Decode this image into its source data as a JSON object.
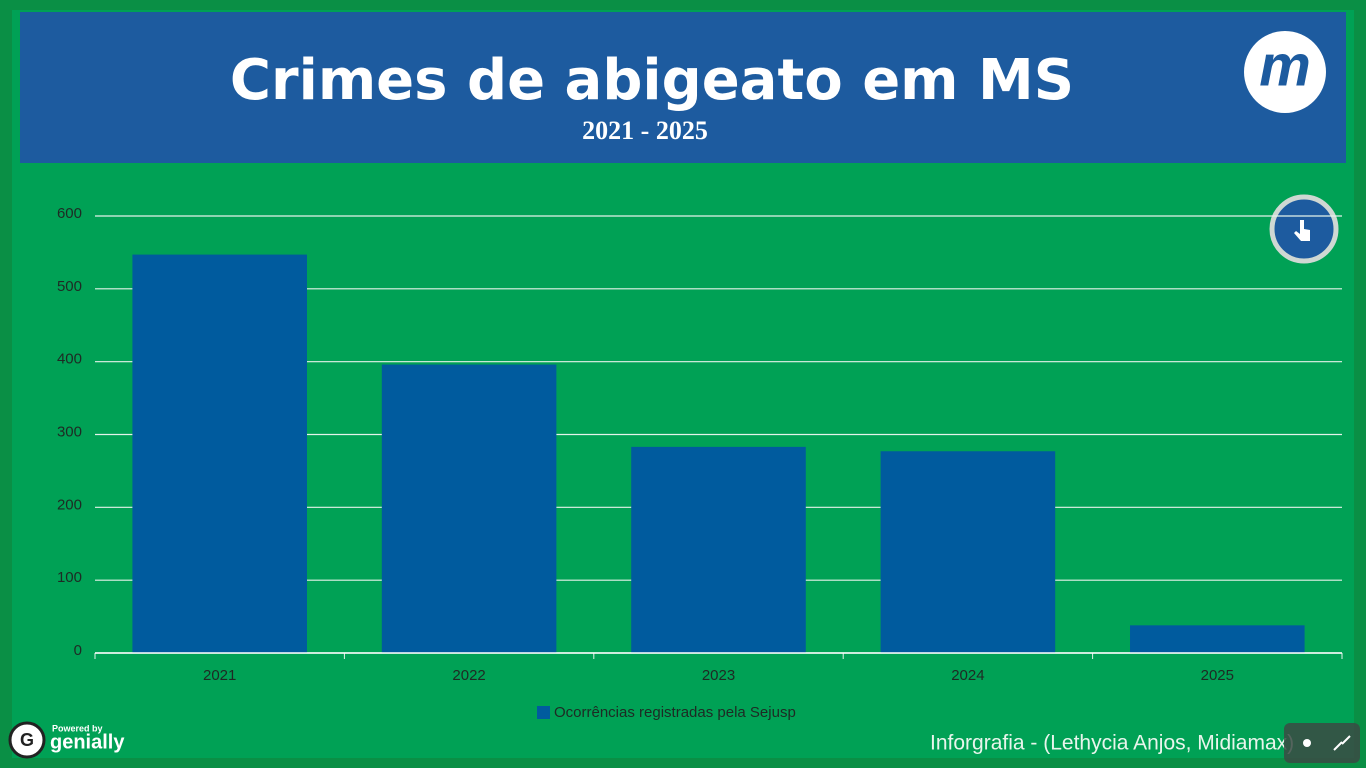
{
  "header": {
    "title": "Crimes de abigeato em MS",
    "subtitle": "2021 - 2025",
    "logo": "m"
  },
  "chart_data": {
    "type": "bar",
    "categories": [
      "2021",
      "2022",
      "2023",
      "2024",
      "2025"
    ],
    "series": [
      {
        "name": "Ocorrências registradas pela Sejusp",
        "color": "#005b9e",
        "values": [
          547,
          396,
          283,
          277,
          38
        ]
      }
    ],
    "ylim": [
      0,
      600
    ],
    "yticks": [
      0,
      100,
      200,
      300,
      400,
      500,
      600
    ],
    "grid": true,
    "legend": "bottom"
  },
  "footer": {
    "credit": "Inforgrafia - (Lethycia Anjos, Midiamax)",
    "powered_by": "Powered by",
    "brand": "genially"
  }
}
